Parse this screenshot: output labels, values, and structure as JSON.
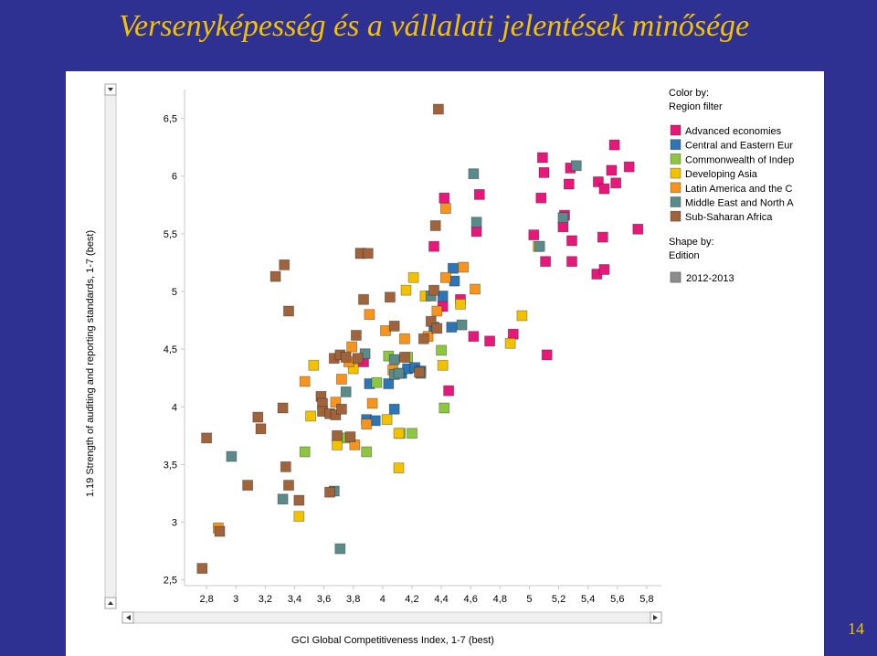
{
  "slide": {
    "title": "Versenyképesség és a vállalati jelentések minősége",
    "page_number": "14"
  },
  "chart_data": {
    "type": "scatter",
    "xlabel": "GCI Global Competitiveness Index, 1-7 (best)",
    "ylabel": "1.19 Strength of auditing and reporting standards, 1-7 (best)",
    "xlim": [
      2.65,
      5.9
    ],
    "ylim": [
      2.45,
      6.75
    ],
    "x_ticks": [
      2.8,
      3,
      3.2,
      3.4,
      3.6,
      3.8,
      4,
      4.2,
      4.4,
      4.6,
      4.8,
      5,
      5.2,
      5.4,
      5.6,
      5.8
    ],
    "x_tick_labels": [
      "2,8",
      "3",
      "3,2",
      "3,4",
      "3,6",
      "3,8",
      "4",
      "4,2",
      "4,4",
      "4,6",
      "4,8",
      "5",
      "5,2",
      "5,4",
      "5,6",
      "5,8"
    ],
    "y_ticks": [
      2.5,
      3,
      3.5,
      4,
      4.5,
      5,
      5.5,
      6,
      6.5
    ],
    "y_tick_labels": [
      "2,5",
      "3",
      "3,5",
      "4",
      "4,5",
      "5",
      "5,5",
      "6",
      "6,5"
    ],
    "grid": false,
    "legend_color": {
      "title": "Color by:",
      "subtitle": "Region filter",
      "placement": "right"
    },
    "legend_shape": {
      "title": "Shape by:",
      "subtitle": "Edition",
      "entry": "2012-2013",
      "color": "#8c8c8c"
    },
    "series": [
      {
        "name": "Advanced economies",
        "color": "#e8177a",
        "points": [
          [
            3.87,
            4.39
          ],
          [
            4.41,
            4.87
          ],
          [
            4.42,
            5.81
          ],
          [
            4.35,
            5.39
          ],
          [
            4.45,
            4.14
          ],
          [
            4.53,
            4.93
          ],
          [
            4.62,
            4.61
          ],
          [
            4.66,
            5.84
          ],
          [
            4.64,
            5.52
          ],
          [
            4.73,
            4.57
          ],
          [
            4.89,
            4.63
          ],
          [
            5.03,
            5.49
          ],
          [
            5.09,
            6.16
          ],
          [
            5.1,
            6.03
          ],
          [
            5.08,
            5.81
          ],
          [
            5.11,
            5.26
          ],
          [
            5.12,
            4.45
          ],
          [
            5.23,
            5.56
          ],
          [
            5.24,
            5.66
          ],
          [
            5.28,
            6.07
          ],
          [
            5.27,
            5.93
          ],
          [
            5.29,
            5.44
          ],
          [
            5.29,
            5.26
          ],
          [
            5.46,
            5.15
          ],
          [
            5.47,
            5.95
          ],
          [
            5.51,
            5.89
          ],
          [
            5.5,
            5.47
          ],
          [
            5.51,
            5.19
          ],
          [
            5.56,
            6.05
          ],
          [
            5.59,
            5.94
          ],
          [
            5.58,
            6.27
          ],
          [
            5.68,
            6.08
          ],
          [
            5.74,
            5.54
          ]
        ]
      },
      {
        "name": "Central and Eastern Eur",
        "color": "#2e75b6",
        "points": [
          [
            3.89,
            3.89
          ],
          [
            3.91,
            4.2
          ],
          [
            3.95,
            3.88
          ],
          [
            4.04,
            4.2
          ],
          [
            4.08,
            3.98
          ],
          [
            4.13,
            4.29
          ],
          [
            4.17,
            4.33
          ],
          [
            4.22,
            4.34
          ],
          [
            4.26,
            4.31
          ],
          [
            4.35,
            4.69
          ],
          [
            4.41,
            4.96
          ],
          [
            4.47,
            4.69
          ],
          [
            4.49,
            5.09
          ],
          [
            4.48,
            5.2
          ]
        ]
      },
      {
        "name": "Commonwealth of Indep",
        "color": "#8dc63f",
        "points": [
          [
            3.47,
            3.61
          ],
          [
            3.74,
            3.73
          ],
          [
            3.89,
            3.61
          ],
          [
            3.96,
            4.21
          ],
          [
            4.04,
            4.44
          ],
          [
            4.12,
            3.77
          ],
          [
            4.17,
            4.43
          ],
          [
            4.2,
            3.77
          ],
          [
            4.4,
            4.49
          ],
          [
            4.42,
            3.99
          ]
        ]
      },
      {
        "name": "Developing Asia",
        "color": "#f2c200",
        "points": [
          [
            3.43,
            3.05
          ],
          [
            3.51,
            3.92
          ],
          [
            3.53,
            4.36
          ],
          [
            3.69,
            3.67
          ],
          [
            3.8,
            4.33
          ],
          [
            4.03,
            3.89
          ],
          [
            4.11,
            3.47
          ],
          [
            4.11,
            3.77
          ],
          [
            4.16,
            5.01
          ],
          [
            4.21,
            5.12
          ],
          [
            4.29,
            4.96
          ],
          [
            4.41,
            4.36
          ],
          [
            4.53,
            4.89
          ],
          [
            4.87,
            4.55
          ],
          [
            4.95,
            4.79
          ],
          [
            5.06,
            5.39
          ]
        ]
      },
      {
        "name": "Latin America and the C",
        "color": "#f7941d",
        "points": [
          [
            2.88,
            2.95
          ],
          [
            3.47,
            4.22
          ],
          [
            3.68,
            4.04
          ],
          [
            3.72,
            4.24
          ],
          [
            3.77,
            4.39
          ],
          [
            3.79,
            4.52
          ],
          [
            3.81,
            3.67
          ],
          [
            3.89,
            3.85
          ],
          [
            3.91,
            4.8
          ],
          [
            3.93,
            4.03
          ],
          [
            4.02,
            4.66
          ],
          [
            4.07,
            4.32
          ],
          [
            4.15,
            4.59
          ],
          [
            4.31,
            4.61
          ],
          [
            4.37,
            4.83
          ],
          [
            4.43,
            5.72
          ],
          [
            4.43,
            5.12
          ],
          [
            4.55,
            5.21
          ],
          [
            4.63,
            5.02
          ],
          [
            3.85,
            5.33
          ]
        ]
      },
      {
        "name": "Middle East and North A",
        "color": "#5b8a8a",
        "points": [
          [
            2.97,
            3.57
          ],
          [
            3.32,
            3.2
          ],
          [
            3.67,
            3.27
          ],
          [
            3.71,
            2.77
          ],
          [
            3.75,
            4.13
          ],
          [
            3.88,
            4.46
          ],
          [
            4.08,
            4.28
          ],
          [
            4.08,
            4.41
          ],
          [
            4.11,
            4.29
          ],
          [
            4.26,
            4.29
          ],
          [
            4.33,
            4.96
          ],
          [
            4.54,
            4.71
          ],
          [
            4.62,
            6.02
          ],
          [
            4.64,
            5.6
          ],
          [
            5.07,
            5.39
          ],
          [
            5.23,
            5.64
          ],
          [
            5.32,
            6.09
          ]
        ]
      },
      {
        "name": "Sub-Saharan Africa",
        "color": "#a0643c",
        "points": [
          [
            2.77,
            2.6
          ],
          [
            2.8,
            3.73
          ],
          [
            2.89,
            2.92
          ],
          [
            3.08,
            3.32
          ],
          [
            3.15,
            3.91
          ],
          [
            3.17,
            3.81
          ],
          [
            3.27,
            5.13
          ],
          [
            3.33,
            5.23
          ],
          [
            3.32,
            3.99
          ],
          [
            3.34,
            3.48
          ],
          [
            3.36,
            3.32
          ],
          [
            3.36,
            4.83
          ],
          [
            3.43,
            3.19
          ],
          [
            3.58,
            4.09
          ],
          [
            3.59,
            4.03
          ],
          [
            3.59,
            3.96
          ],
          [
            3.64,
            3.94
          ],
          [
            3.64,
            3.26
          ],
          [
            3.67,
            4.42
          ],
          [
            3.68,
            3.93
          ],
          [
            3.69,
            3.75
          ],
          [
            3.71,
            4.45
          ],
          [
            3.72,
            3.98
          ],
          [
            3.75,
            4.43
          ],
          [
            3.78,
            3.74
          ],
          [
            3.82,
            4.62
          ],
          [
            3.83,
            4.42
          ],
          [
            3.85,
            5.33
          ],
          [
            3.9,
            5.33
          ],
          [
            3.87,
            4.93
          ],
          [
            4.05,
            4.95
          ],
          [
            4.08,
            4.7
          ],
          [
            4.15,
            4.43
          ],
          [
            4.28,
            4.59
          ],
          [
            4.33,
            4.74
          ],
          [
            4.35,
            5.01
          ],
          [
            4.37,
            4.68
          ],
          [
            4.36,
            5.57
          ],
          [
            4.38,
            6.58
          ],
          [
            4.25,
            4.3
          ]
        ]
      }
    ]
  }
}
